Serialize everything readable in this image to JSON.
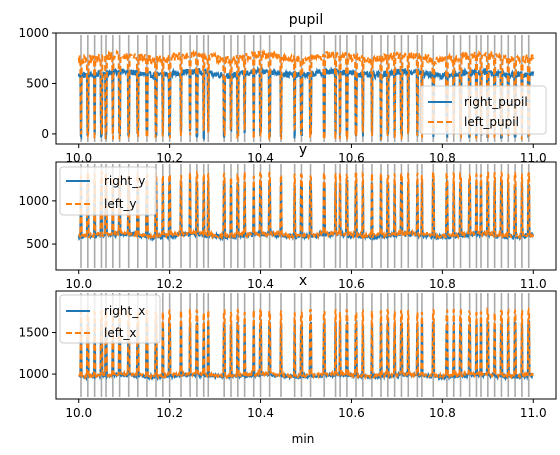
{
  "chart_data": [
    {
      "type": "line",
      "title": "pupil",
      "xlabel": "",
      "ylabel": "",
      "xlim": [
        9.95,
        11.05
      ],
      "ylim": [
        -100,
        1000
      ],
      "xticks": [
        "10.0",
        "10.2",
        "10.4",
        "10.6",
        "10.8",
        "11.0"
      ],
      "yticks": [
        "0",
        "500",
        "1000"
      ],
      "legend_position": "lower-right",
      "series": [
        {
          "name": "right_pupil",
          "color": "#1f77b4",
          "style": "solid",
          "baseline": 600,
          "spike_to": 0,
          "noise": 30
        },
        {
          "name": "left_pupil",
          "color": "#ff7f0e",
          "style": "dashed",
          "baseline": 760,
          "spike_to": 0,
          "noise": 40
        }
      ]
    },
    {
      "type": "line",
      "title": "y",
      "xlabel": "",
      "ylabel": "",
      "xlim": [
        9.95,
        11.05
      ],
      "ylim": [
        200,
        1450
      ],
      "xticks": [
        "10.0",
        "10.2",
        "10.4",
        "10.6",
        "10.8",
        "11.0"
      ],
      "yticks": [
        "500",
        "1000"
      ],
      "legend_position": "upper-left",
      "series": [
        {
          "name": "right_y",
          "color": "#1f77b4",
          "style": "solid",
          "baseline": 600,
          "spike_to": 1200,
          "noise": 25
        },
        {
          "name": "left_y",
          "color": "#ff7f0e",
          "style": "dashed",
          "baseline": 610,
          "spike_to": 1300,
          "noise": 25
        }
      ]
    },
    {
      "type": "line",
      "title": "x",
      "xlabel": "min",
      "ylabel": "",
      "xlim": [
        9.95,
        11.05
      ],
      "ylim": [
        700,
        2000
      ],
      "xticks": [
        "10.0",
        "10.2",
        "10.4",
        "10.6",
        "10.8",
        "11.0"
      ],
      "yticks": [
        "1000",
        "1500"
      ],
      "legend_position": "upper-left",
      "series": [
        {
          "name": "right_x",
          "color": "#1f77b4",
          "style": "solid",
          "baseline": 980,
          "spike_to": 1600,
          "noise": 20
        },
        {
          "name": "left_x",
          "color": "#ff7f0e",
          "style": "dashed",
          "baseline": 990,
          "spike_to": 1750,
          "noise": 20
        }
      ]
    }
  ],
  "blink_markers": {
    "color": "#aaaaaa",
    "x": [
      10.005,
      10.02,
      10.035,
      10.05,
      10.06,
      10.075,
      10.09,
      10.11,
      10.13,
      10.15,
      10.17,
      10.185,
      10.2,
      10.225,
      10.245,
      10.26,
      10.275,
      10.285,
      10.32,
      10.335,
      10.35,
      10.365,
      10.385,
      10.4,
      10.42,
      10.445,
      10.475,
      10.49,
      10.51,
      10.54,
      10.565,
      10.575,
      10.59,
      10.61,
      10.625,
      10.645,
      10.665,
      10.68,
      10.695,
      10.71,
      10.725,
      10.745,
      10.755,
      10.78,
      10.81,
      10.825,
      10.84,
      10.86,
      10.875,
      10.885,
      10.9,
      10.915,
      10.93,
      10.945,
      10.96,
      10.975,
      10.99
    ]
  }
}
